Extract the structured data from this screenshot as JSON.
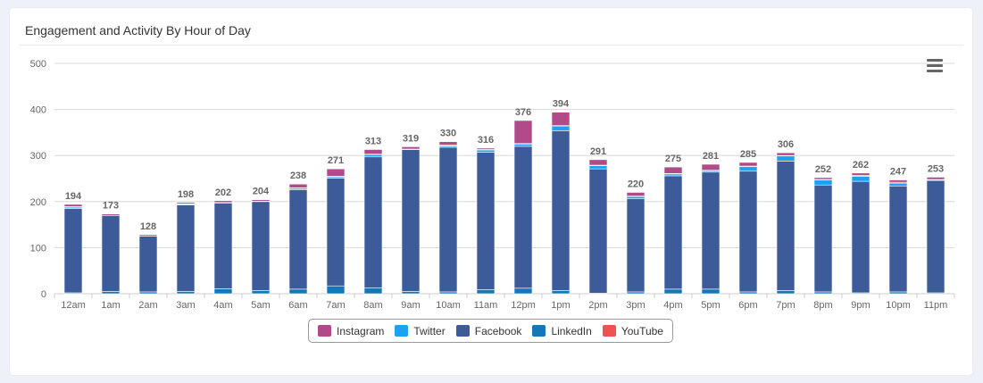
{
  "card": {
    "title": "Engagement and Activity By Hour of Day",
    "menu_icon": "hamburger-menu-icon"
  },
  "chart_data": {
    "type": "bar",
    "stacked": true,
    "title": "Engagement and Activity By Hour of Day",
    "xlabel": "",
    "ylabel": "",
    "ylim": [
      0,
      500
    ],
    "yticks": [
      0,
      100,
      200,
      300,
      400,
      500
    ],
    "categories": [
      "12am",
      "1am",
      "2am",
      "3am",
      "4am",
      "5am",
      "6am",
      "7am",
      "8am",
      "9am",
      "10am",
      "11am",
      "12pm",
      "1pm",
      "2pm",
      "3pm",
      "4pm",
      "5pm",
      "6pm",
      "7pm",
      "8pm",
      "9pm",
      "10pm",
      "11pm"
    ],
    "totals": [
      194,
      173,
      128,
      198,
      202,
      204,
      238,
      271,
      313,
      319,
      330,
      316,
      376,
      394,
      291,
      220,
      275,
      281,
      285,
      306,
      252,
      262,
      247,
      253
    ],
    "series": [
      {
        "name": "LinkedIn",
        "color": "#1478b6",
        "values": [
          2,
          5,
          4,
          5,
          11,
          7,
          10,
          17,
          13,
          5,
          4,
          9,
          12,
          7,
          1,
          4,
          10,
          10,
          4,
          7,
          4,
          2,
          4,
          2
        ]
      },
      {
        "name": "Facebook",
        "color": "#3d5a99",
        "values": [
          183,
          165,
          121,
          188,
          186,
          193,
          216,
          234,
          284,
          308,
          314,
          298,
          308,
          347,
          270,
          202,
          246,
          254,
          262,
          281,
          232,
          242,
          230,
          244
        ]
      },
      {
        "name": "Twitter",
        "color": "#1da1f2",
        "values": [
          3,
          0,
          0,
          1,
          0,
          1,
          3,
          3,
          5,
          1,
          3,
          5,
          5,
          10,
          7,
          5,
          4,
          3,
          10,
          11,
          11,
          11,
          6,
          1
        ]
      },
      {
        "name": "YouTube",
        "color": "#ef5350",
        "values": [
          1,
          0,
          0,
          1,
          1,
          0,
          1,
          1,
          1,
          0,
          2,
          1,
          1,
          1,
          1,
          1,
          1,
          1,
          1,
          1,
          1,
          2,
          2,
          1
        ]
      },
      {
        "name": "Instagram",
        "color": "#b04a88",
        "values": [
          5,
          3,
          3,
          3,
          4,
          3,
          8,
          16,
          10,
          5,
          7,
          3,
          50,
          29,
          12,
          8,
          14,
          13,
          8,
          6,
          4,
          5,
          5,
          5
        ]
      }
    ],
    "legend": [
      "Instagram",
      "Twitter",
      "Facebook",
      "LinkedIn",
      "YouTube"
    ],
    "legend_position": "bottom-center",
    "grid": true
  }
}
